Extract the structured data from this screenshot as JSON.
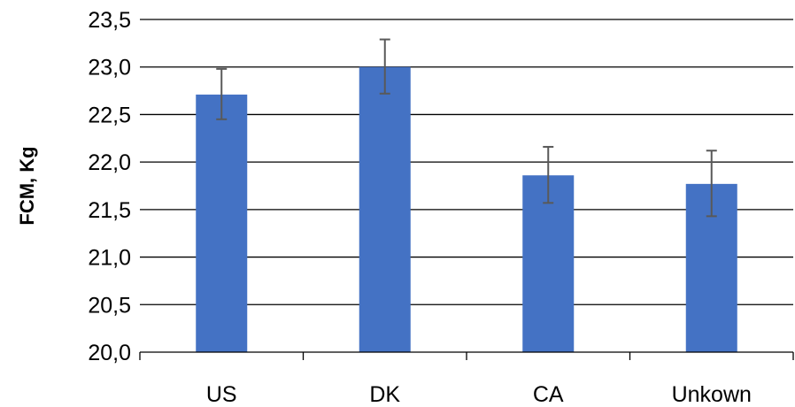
{
  "chart_data": {
    "type": "bar",
    "categories": [
      "US",
      "DK",
      "CA",
      "Unkown"
    ],
    "values": [
      22.71,
      23.0,
      21.86,
      21.77
    ],
    "error_low": [
      22.45,
      22.72,
      21.57,
      21.43
    ],
    "error_high": [
      22.98,
      23.29,
      22.16,
      22.12
    ],
    "ylabel": "FCM, Kg",
    "ylim": [
      20.0,
      23.5
    ],
    "yticks": [
      "20,0",
      "20,5",
      "21,0",
      "21,5",
      "22,0",
      "22,5",
      "23,0",
      "23,5"
    ],
    "ytick_values": [
      20.0,
      20.5,
      21.0,
      21.5,
      22.0,
      22.5,
      23.0,
      23.5
    ],
    "grid": true,
    "bar_color": "#4472C4",
    "error_color": "#595959"
  }
}
